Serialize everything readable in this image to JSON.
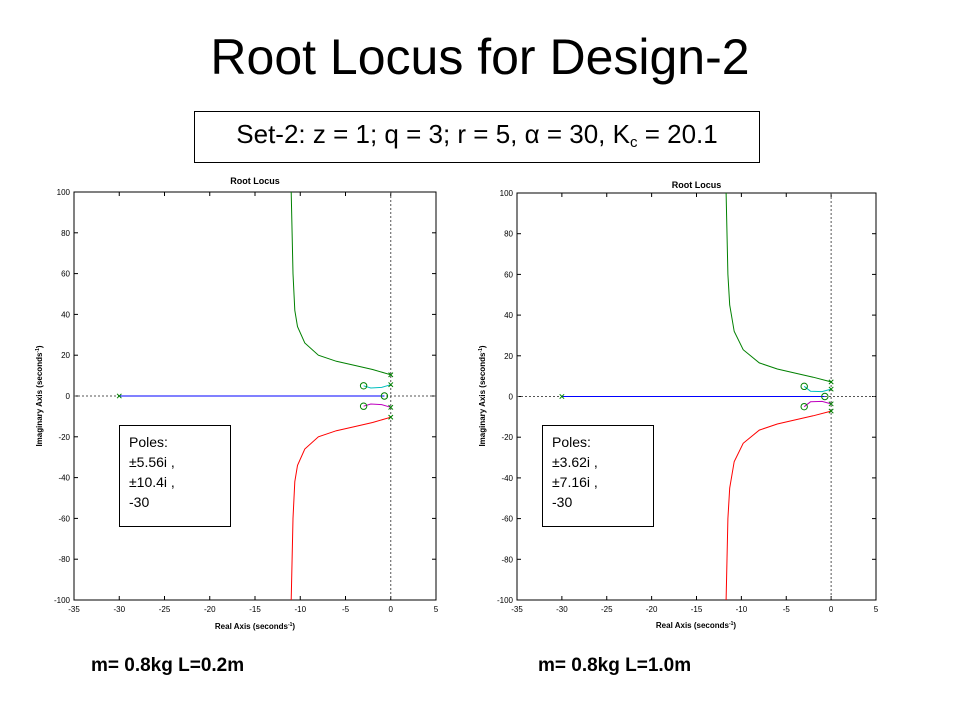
{
  "slide": {
    "title": "Root Locus for Design-2",
    "subtitle": "Set-2: z = 1;  q = 3; r = 5, α = 30, K",
    "subtitle_sub": "c",
    "subtitle_tail": " = 20.1"
  },
  "chart_data": [
    {
      "type": "line",
      "title": "Root Locus",
      "xlabel": "Real Axis (seconds",
      "xlabel_sup": "-1",
      "xlabel_tail": ")",
      "ylabel": "Imaginary Axis (seconds",
      "ylabel_sup": "-1",
      "ylabel_tail": ")",
      "xlim": [
        -35,
        5
      ],
      "ylim": [
        -100,
        100
      ],
      "xticks": [
        -35,
        -30,
        -25,
        -20,
        -15,
        -10,
        -5,
        0,
        5
      ],
      "yticks": [
        100,
        80,
        60,
        40,
        20,
        0,
        -20,
        -40,
        -60,
        -80,
        -100
      ],
      "poles_label": "Poles:",
      "poles_lines": [
        "±5.56i ,",
        "±10.4i ,",
        "-30"
      ],
      "caption": "m= 0.8kg   L=0.2m",
      "poles": [
        [
          0,
          5.56
        ],
        [
          0,
          -5.56
        ],
        [
          0,
          10.4
        ],
        [
          0,
          -10.4
        ],
        [
          -30,
          0
        ]
      ],
      "zeros": [
        [
          -3,
          5
        ],
        [
          -3,
          -5
        ],
        [
          -0.7,
          0
        ]
      ],
      "series": [
        {
          "color": "#0000ff",
          "points": [
            [
              -30,
              0
            ],
            [
              -0.7,
              0
            ]
          ]
        },
        {
          "color": "#008000",
          "points": [
            [
              0,
              10.4
            ],
            [
              -2,
              13
            ],
            [
              -4,
              15
            ],
            [
              -6,
              17
            ],
            [
              -8,
              20
            ],
            [
              -9.5,
              26
            ],
            [
              -10.3,
              34
            ],
            [
              -10.6,
              42
            ],
            [
              -10.8,
              60
            ],
            [
              -10.9,
              80
            ],
            [
              -11,
              100
            ]
          ]
        },
        {
          "color": "#ff0000",
          "points": [
            [
              0,
              -10.4
            ],
            [
              -2,
              -13
            ],
            [
              -4,
              -15
            ],
            [
              -6,
              -17
            ],
            [
              -8,
              -20
            ],
            [
              -9.5,
              -26
            ],
            [
              -10.3,
              -34
            ],
            [
              -10.6,
              -42
            ],
            [
              -10.8,
              -60
            ],
            [
              -10.9,
              -80
            ],
            [
              -11,
              -100
            ]
          ]
        },
        {
          "color": "#00bfbf",
          "points": [
            [
              0,
              5.56
            ],
            [
              -1,
              4.2
            ],
            [
              -2.2,
              3.9
            ],
            [
              -3,
              5
            ]
          ]
        },
        {
          "color": "#bf00bf",
          "points": [
            [
              0,
              -5.56
            ],
            [
              -1,
              -4.2
            ],
            [
              -2.2,
              -3.9
            ],
            [
              -3,
              -5
            ]
          ]
        }
      ]
    },
    {
      "type": "line",
      "title": "Root Locus",
      "xlabel": "Real Axis (seconds",
      "xlabel_sup": "-1",
      "xlabel_tail": ")",
      "ylabel": "Imaginary Axis (seconds",
      "ylabel_sup": "-1",
      "ylabel_tail": ")",
      "xlim": [
        -35,
        5
      ],
      "ylim": [
        -100,
        100
      ],
      "xticks": [
        -35,
        -30,
        -25,
        -20,
        -15,
        -10,
        -5,
        0,
        5
      ],
      "yticks": [
        100,
        80,
        60,
        40,
        20,
        0,
        -20,
        -40,
        -60,
        -80,
        -100
      ],
      "poles_label": "Poles:",
      "poles_lines": [
        "±3.62i ,",
        "±7.16i ,",
        "-30"
      ],
      "caption": "m= 0.8kg   L=1.0m",
      "poles": [
        [
          0,
          3.62
        ],
        [
          0,
          -3.62
        ],
        [
          0,
          7.16
        ],
        [
          0,
          -7.16
        ],
        [
          -30,
          0
        ]
      ],
      "zeros": [
        [
          -3,
          5
        ],
        [
          -3,
          -5
        ],
        [
          -0.7,
          0
        ]
      ],
      "series": [
        {
          "color": "#0000ff",
          "points": [
            [
              -30,
              0
            ],
            [
              -0.7,
              0
            ]
          ]
        },
        {
          "color": "#008000",
          "points": [
            [
              0,
              7.16
            ],
            [
              -2,
              9.5
            ],
            [
              -4,
              11.5
            ],
            [
              -6,
              13.5
            ],
            [
              -8,
              16.5
            ],
            [
              -9.8,
              23
            ],
            [
              -10.8,
              32
            ],
            [
              -11.3,
              45
            ],
            [
              -11.5,
              60
            ],
            [
              -11.6,
              80
            ],
            [
              -11.7,
              100
            ]
          ]
        },
        {
          "color": "#ff0000",
          "points": [
            [
              0,
              -7.16
            ],
            [
              -2,
              -9.5
            ],
            [
              -4,
              -11.5
            ],
            [
              -6,
              -13.5
            ],
            [
              -8,
              -16.5
            ],
            [
              -9.8,
              -23
            ],
            [
              -10.8,
              -32
            ],
            [
              -11.3,
              -45
            ],
            [
              -11.5,
              -60
            ],
            [
              -11.6,
              -80
            ],
            [
              -11.7,
              -100
            ]
          ]
        },
        {
          "color": "#00bfbf",
          "points": [
            [
              0,
              3.62
            ],
            [
              -1,
              2.4
            ],
            [
              -2.3,
              2.6
            ],
            [
              -3,
              5
            ]
          ]
        },
        {
          "color": "#bf00bf",
          "points": [
            [
              0,
              -3.62
            ],
            [
              -1,
              -2.4
            ],
            [
              -2.3,
              -2.6
            ],
            [
              -3,
              -5
            ]
          ]
        }
      ]
    }
  ]
}
